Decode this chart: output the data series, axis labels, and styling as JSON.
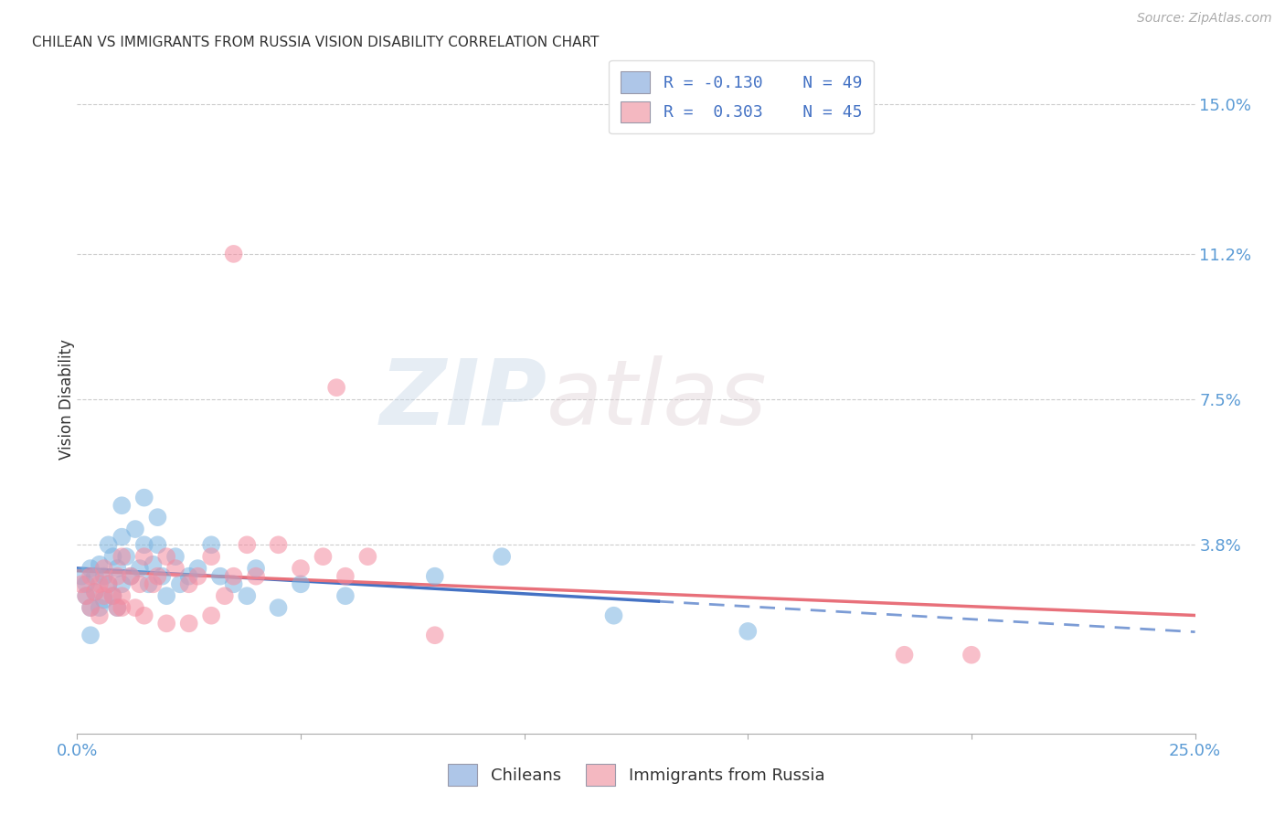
{
  "title": "CHILEAN VS IMMIGRANTS FROM RUSSIA VISION DISABILITY CORRELATION CHART",
  "source": "Source: ZipAtlas.com",
  "ylabel": "Vision Disability",
  "xlim": [
    0.0,
    0.25
  ],
  "ylim": [
    -0.01,
    0.16
  ],
  "ytick_labels_right": [
    "15.0%",
    "11.2%",
    "7.5%",
    "3.8%"
  ],
  "ytick_vals_right": [
    0.15,
    0.112,
    0.075,
    0.038
  ],
  "legend_labels_bottom": [
    "Chileans",
    "Immigrants from Russia"
  ],
  "chilean_color": "#7ab3e0",
  "russian_color": "#f48ca0",
  "chilean_line_color": "#4472c4",
  "russian_line_color": "#e8707a",
  "watermark_zip": "ZIP",
  "watermark_atlas": "atlas",
  "R_chilean": -0.13,
  "N_chilean": 49,
  "R_russian": 0.303,
  "N_russian": 45,
  "chilean_points": [
    [
      0.001,
      0.03
    ],
    [
      0.002,
      0.028
    ],
    [
      0.002,
      0.025
    ],
    [
      0.003,
      0.032
    ],
    [
      0.003,
      0.022
    ],
    [
      0.004,
      0.03
    ],
    [
      0.004,
      0.026
    ],
    [
      0.005,
      0.033
    ],
    [
      0.005,
      0.022
    ],
    [
      0.006,
      0.03
    ],
    [
      0.006,
      0.024
    ],
    [
      0.007,
      0.038
    ],
    [
      0.007,
      0.028
    ],
    [
      0.008,
      0.035
    ],
    [
      0.008,
      0.025
    ],
    [
      0.009,
      0.032
    ],
    [
      0.009,
      0.022
    ],
    [
      0.01,
      0.04
    ],
    [
      0.01,
      0.028
    ],
    [
      0.011,
      0.035
    ],
    [
      0.012,
      0.03
    ],
    [
      0.013,
      0.042
    ],
    [
      0.014,
      0.032
    ],
    [
      0.015,
      0.038
    ],
    [
      0.016,
      0.028
    ],
    [
      0.017,
      0.033
    ],
    [
      0.018,
      0.038
    ],
    [
      0.019,
      0.03
    ],
    [
      0.02,
      0.025
    ],
    [
      0.022,
      0.035
    ],
    [
      0.023,
      0.028
    ],
    [
      0.025,
      0.03
    ],
    [
      0.027,
      0.032
    ],
    [
      0.03,
      0.038
    ],
    [
      0.032,
      0.03
    ],
    [
      0.035,
      0.028
    ],
    [
      0.038,
      0.025
    ],
    [
      0.04,
      0.032
    ],
    [
      0.045,
      0.022
    ],
    [
      0.05,
      0.028
    ],
    [
      0.06,
      0.025
    ],
    [
      0.08,
      0.03
    ],
    [
      0.095,
      0.035
    ],
    [
      0.01,
      0.048
    ],
    [
      0.015,
      0.05
    ],
    [
      0.018,
      0.045
    ],
    [
      0.003,
      0.015
    ],
    [
      0.12,
      0.02
    ],
    [
      0.15,
      0.016
    ]
  ],
  "russian_points": [
    [
      0.001,
      0.028
    ],
    [
      0.002,
      0.025
    ],
    [
      0.003,
      0.022
    ],
    [
      0.003,
      0.03
    ],
    [
      0.004,
      0.026
    ],
    [
      0.005,
      0.028
    ],
    [
      0.005,
      0.02
    ],
    [
      0.006,
      0.032
    ],
    [
      0.006,
      0.025
    ],
    [
      0.007,
      0.028
    ],
    [
      0.008,
      0.025
    ],
    [
      0.009,
      0.03
    ],
    [
      0.009,
      0.022
    ],
    [
      0.01,
      0.035
    ],
    [
      0.01,
      0.025
    ],
    [
      0.012,
      0.03
    ],
    [
      0.013,
      0.022
    ],
    [
      0.014,
      0.028
    ],
    [
      0.015,
      0.035
    ],
    [
      0.017,
      0.028
    ],
    [
      0.018,
      0.03
    ],
    [
      0.02,
      0.035
    ],
    [
      0.022,
      0.032
    ],
    [
      0.025,
      0.028
    ],
    [
      0.027,
      0.03
    ],
    [
      0.03,
      0.035
    ],
    [
      0.033,
      0.025
    ],
    [
      0.035,
      0.03
    ],
    [
      0.038,
      0.038
    ],
    [
      0.04,
      0.03
    ],
    [
      0.045,
      0.038
    ],
    [
      0.05,
      0.032
    ],
    [
      0.055,
      0.035
    ],
    [
      0.06,
      0.03
    ],
    [
      0.065,
      0.035
    ],
    [
      0.01,
      0.022
    ],
    [
      0.015,
      0.02
    ],
    [
      0.02,
      0.018
    ],
    [
      0.025,
      0.018
    ],
    [
      0.03,
      0.02
    ],
    [
      0.08,
      0.015
    ],
    [
      0.035,
      0.112
    ],
    [
      0.058,
      0.078
    ],
    [
      0.2,
      0.01
    ],
    [
      0.185,
      0.01
    ]
  ]
}
